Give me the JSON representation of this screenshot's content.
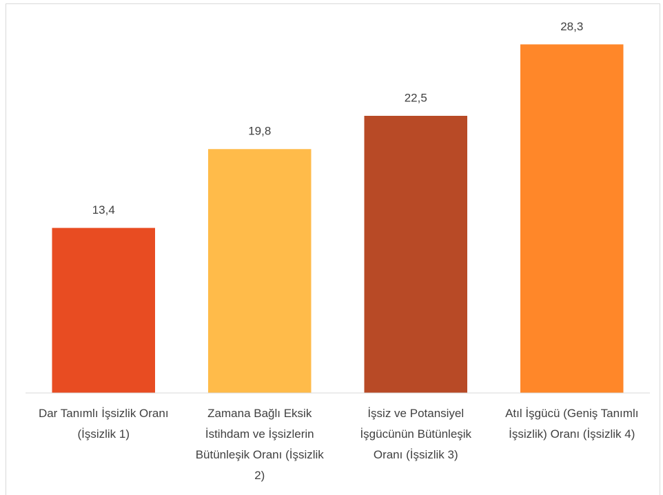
{
  "chart_data": {
    "type": "bar",
    "categories": [
      "Dar Tanımlı İşsizlik Oranı (İşsizlik 1)",
      "Zamana Bağlı Eksik İstihdam ve İşsizlerin Bütünleşik Oranı (İşsizlik 2)",
      "İşsiz ve Potansiyel İşgücünün Bütünleşik Oranı (İşsizlik 3)",
      "Atıl İşgücü (Geniş Tanımlı İşsizlik) Oranı (İşsizlik 4)"
    ],
    "values": [
      13.4,
      19.8,
      22.5,
      28.3
    ],
    "value_labels": [
      "13,4",
      "19,8",
      "22,5",
      "28,3"
    ],
    "colors": [
      "#e84c22",
      "#ffbb4a",
      "#b84a26",
      "#ff8729"
    ],
    "ylim": [
      0,
      30
    ]
  }
}
